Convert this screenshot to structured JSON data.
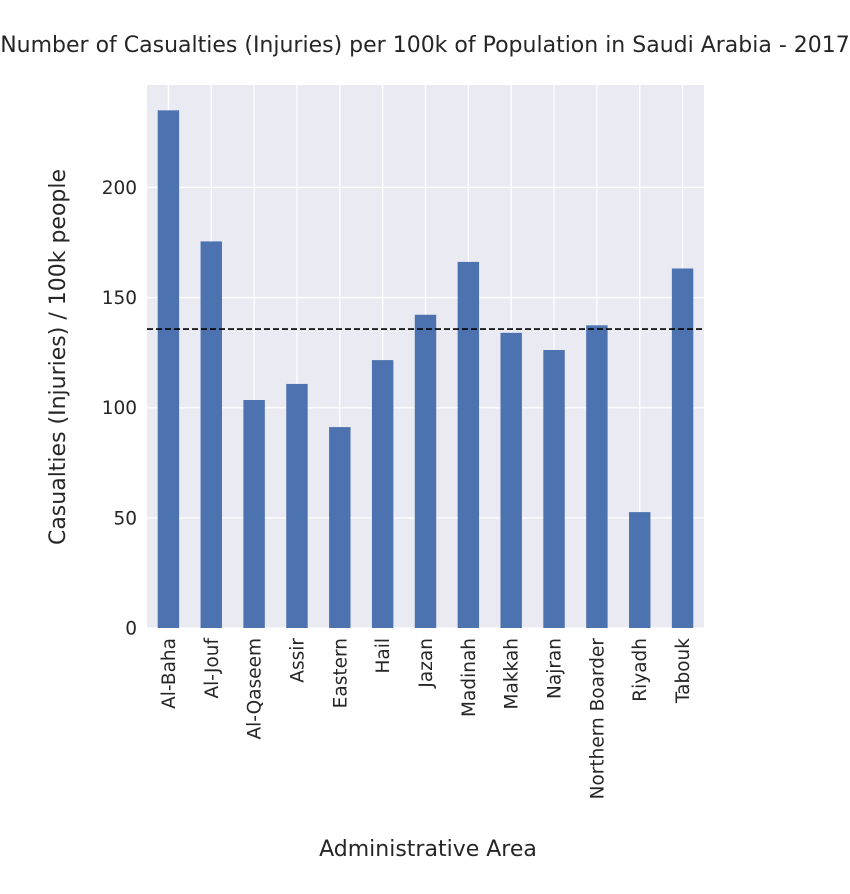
{
  "chart_data": {
    "type": "bar",
    "title": "Number of Casualties (Injuries) per 100k of Population in Saudi Arabia - 2017",
    "xlabel": "Administrative Area",
    "ylabel": "Casualties (Injuries) / 100k people",
    "categories": [
      "Al-Baha",
      "Al-Jouf",
      "Al-Qaseem",
      "Assir",
      "Eastern",
      "Hail",
      "Jazan",
      "Madinah",
      "Makkah",
      "Najran",
      "Northern Boarder",
      "Riyadh",
      "Tabouk"
    ],
    "values": [
      235,
      175.5,
      103.5,
      110.8,
      91.2,
      121.6,
      142.2,
      166.2,
      134,
      126.2,
      137.4,
      52.6,
      163.2
    ],
    "reference_line": {
      "value": 135.7,
      "style": "dashed",
      "color": "#000000"
    },
    "yticks": [
      0,
      50,
      100,
      150,
      200
    ],
    "ylim": [
      0,
      246.5
    ],
    "grid": true,
    "colors": {
      "bar": "#4c72b0",
      "plot_background": "#eaeaf2",
      "grid": "#ffffff"
    }
  }
}
